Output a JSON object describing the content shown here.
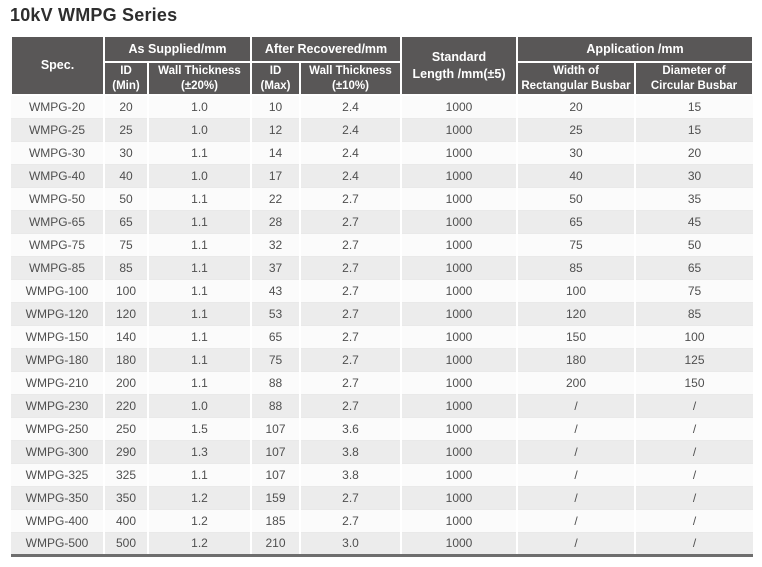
{
  "colors": {
    "header-bg": "#595757",
    "row-odd": "#fbfbfb",
    "row-even": "#ececec",
    "bottom-border": "#6e6e6e",
    "body-text": "#4f4f4f",
    "title-text": "#2e2e2e"
  },
  "page": {
    "title": "10kV WMPG Series"
  },
  "table": {
    "header": {
      "spec": "Spec.",
      "as_supplied": "As Supplied/mm",
      "after_recovered": "After Recovered/mm",
      "standard_length": "Standard\nLength /mm(±5)",
      "application": "Application /mm",
      "id_min": "ID\n(Min)",
      "wall_thickness_20": "Wall Thickness\n(±20%)",
      "id_max": "ID\n(Max)",
      "wall_thickness_10": "Wall Thickness\n(±10%)",
      "width_rectangular_busbar": "Width of\nRectangular Busbar",
      "diameter_circular_busbar": "Diameter of\nCircular Busbar"
    },
    "rows": [
      [
        "WMPG-20",
        "20",
        "1.0",
        "10",
        "2.4",
        "1000",
        "20",
        "15"
      ],
      [
        "WMPG-25",
        "25",
        "1.0",
        "12",
        "2.4",
        "1000",
        "25",
        "15"
      ],
      [
        "WMPG-30",
        "30",
        "1.1",
        "14",
        "2.4",
        "1000",
        "30",
        "20"
      ],
      [
        "WMPG-40",
        "40",
        "1.0",
        "17",
        "2.4",
        "1000",
        "40",
        "30"
      ],
      [
        "WMPG-50",
        "50",
        "1.1",
        "22",
        "2.7",
        "1000",
        "50",
        "35"
      ],
      [
        "WMPG-65",
        "65",
        "1.1",
        "28",
        "2.7",
        "1000",
        "65",
        "45"
      ],
      [
        "WMPG-75",
        "75",
        "1.1",
        "32",
        "2.7",
        "1000",
        "75",
        "50"
      ],
      [
        "WMPG-85",
        "85",
        "1.1",
        "37",
        "2.7",
        "1000",
        "85",
        "65"
      ],
      [
        "WMPG-100",
        "100",
        "1.1",
        "43",
        "2.7",
        "1000",
        "100",
        "75"
      ],
      [
        "WMPG-120",
        "120",
        "1.1",
        "53",
        "2.7",
        "1000",
        "120",
        "85"
      ],
      [
        "WMPG-150",
        "140",
        "1.1",
        "65",
        "2.7",
        "1000",
        "150",
        "100"
      ],
      [
        "WMPG-180",
        "180",
        "1.1",
        "75",
        "2.7",
        "1000",
        "180",
        "125"
      ],
      [
        "WMPG-210",
        "200",
        "1.1",
        "88",
        "2.7",
        "1000",
        "200",
        "150"
      ],
      [
        "WMPG-230",
        "220",
        "1.0",
        "88",
        "2.7",
        "1000",
        "/",
        "/"
      ],
      [
        "WMPG-250",
        "250",
        "1.5",
        "107",
        "3.6",
        "1000",
        "/",
        "/"
      ],
      [
        "WMPG-300",
        "290",
        "1.3",
        "107",
        "3.8",
        "1000",
        "/",
        "/"
      ],
      [
        "WMPG-325",
        "325",
        "1.1",
        "107",
        "3.8",
        "1000",
        "/",
        "/"
      ],
      [
        "WMPG-350",
        "350",
        "1.2",
        "159",
        "2.7",
        "1000",
        "/",
        "/"
      ],
      [
        "WMPG-400",
        "400",
        "1.2",
        "185",
        "2.7",
        "1000",
        "/",
        "/"
      ],
      [
        "WMPG-500",
        "500",
        "1.2",
        "210",
        "3.0",
        "1000",
        "/",
        "/"
      ]
    ]
  }
}
